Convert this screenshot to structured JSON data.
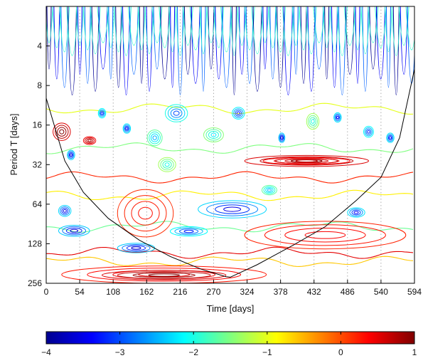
{
  "chart_data": {
    "type": "contour",
    "xlabel": "Time [days]",
    "ylabel": "Period T [days]",
    "xlim": [
      0,
      594
    ],
    "ylim": [
      2,
      256
    ],
    "y_scale": "log2",
    "y_inverted": true,
    "x_ticks": [
      0,
      54,
      108,
      162,
      216,
      270,
      324,
      378,
      432,
      486,
      540,
      594
    ],
    "y_ticks": [
      4,
      8,
      16,
      32,
      64,
      128,
      256
    ],
    "vertical_gridlines": true,
    "colorbar": {
      "ticks": [
        -4,
        -3,
        -2,
        -1,
        0,
        1
      ],
      "range": [
        -4,
        1
      ],
      "colormap": "jet"
    },
    "cone_of_influence": {
      "x": [
        0,
        30,
        60,
        100,
        150,
        200,
        250,
        290,
        297,
        340,
        400,
        450,
        500,
        540,
        570,
        594
      ],
      "y": [
        10,
        30,
        52,
        82,
        120,
        160,
        200,
        228,
        230,
        185,
        130,
        95,
        60,
        40,
        20,
        6
      ]
    },
    "contour_blobs": [
      {
        "x": 25,
        "y": 18,
        "rx": 14,
        "ry": 0.22,
        "level": 1
      },
      {
        "x": 70,
        "y": 21,
        "rx": 10,
        "ry": 0.1,
        "level": 0.8
      },
      {
        "x": 40,
        "y": 27,
        "rx": 6,
        "ry": 0.12,
        "level": -3.5
      },
      {
        "x": 90,
        "y": 13,
        "rx": 6,
        "ry": 0.12,
        "level": -3.2
      },
      {
        "x": 130,
        "y": 17,
        "rx": 6,
        "ry": 0.12,
        "level": -3.4
      },
      {
        "x": 175,
        "y": 20,
        "rx": 12,
        "ry": 0.2,
        "level": -2.5
      },
      {
        "x": 210,
        "y": 13,
        "rx": 18,
        "ry": 0.22,
        "level": -3.0
      },
      {
        "x": 195,
        "y": 32,
        "rx": 14,
        "ry": 0.18,
        "level": -2.0
      },
      {
        "x": 270,
        "y": 19,
        "rx": 16,
        "ry": 0.18,
        "level": -2.2
      },
      {
        "x": 310,
        "y": 13,
        "rx": 10,
        "ry": 0.15,
        "level": -3.3
      },
      {
        "x": 380,
        "y": 20,
        "rx": 5,
        "ry": 0.12,
        "level": -3.6
      },
      {
        "x": 430,
        "y": 15,
        "rx": 10,
        "ry": 0.2,
        "level": -2.0
      },
      {
        "x": 470,
        "y": 14,
        "rx": 6,
        "ry": 0.12,
        "level": -3.4
      },
      {
        "x": 520,
        "y": 18,
        "rx": 8,
        "ry": 0.14,
        "level": -3.2
      },
      {
        "x": 555,
        "y": 20,
        "rx": 6,
        "ry": 0.12,
        "level": -3.4
      },
      {
        "x": 420,
        "y": 30,
        "rx": 100,
        "ry": 0.14,
        "level": 1
      },
      {
        "x": 420,
        "y": 30,
        "rx": 70,
        "ry": 0.09,
        "level": 0.7
      },
      {
        "x": 300,
        "y": 70,
        "rx": 55,
        "ry": 0.22,
        "level": -3.5
      },
      {
        "x": 30,
        "y": 72,
        "rx": 10,
        "ry": 0.14,
        "level": -3.5
      },
      {
        "x": 500,
        "y": 74,
        "rx": 14,
        "ry": 0.12,
        "level": -3.4
      },
      {
        "x": 360,
        "y": 50,
        "rx": 12,
        "ry": 0.12,
        "level": -2.5
      },
      {
        "x": 45,
        "y": 102,
        "rx": 25,
        "ry": 0.14,
        "level": -3.6
      },
      {
        "x": 160,
        "y": 75,
        "rx": 45,
        "ry": 0.6,
        "level": 0.3
      },
      {
        "x": 230,
        "y": 103,
        "rx": 30,
        "ry": 0.12,
        "level": -3.2
      },
      {
        "x": 145,
        "y": 138,
        "rx": 30,
        "ry": 0.12,
        "level": -3.6
      },
      {
        "x": 450,
        "y": 110,
        "rx": 130,
        "ry": 0.35,
        "level": 0.4
      },
      {
        "x": 190,
        "y": 220,
        "rx": 165,
        "ry": 0.22,
        "level": 0.5
      },
      {
        "x": 190,
        "y": 222,
        "rx": 100,
        "ry": 0.12,
        "level": 1
      }
    ],
    "bands": [
      {
        "y": 12,
        "level": -1.0
      },
      {
        "y": 24,
        "level": -1.5
      },
      {
        "y": 40,
        "level": 0.2
      },
      {
        "y": 55,
        "level": -0.8
      },
      {
        "y": 95,
        "level": -1.6
      },
      {
        "y": 150,
        "level": 0.5
      },
      {
        "y": 175,
        "level": -0.6
      }
    ]
  }
}
